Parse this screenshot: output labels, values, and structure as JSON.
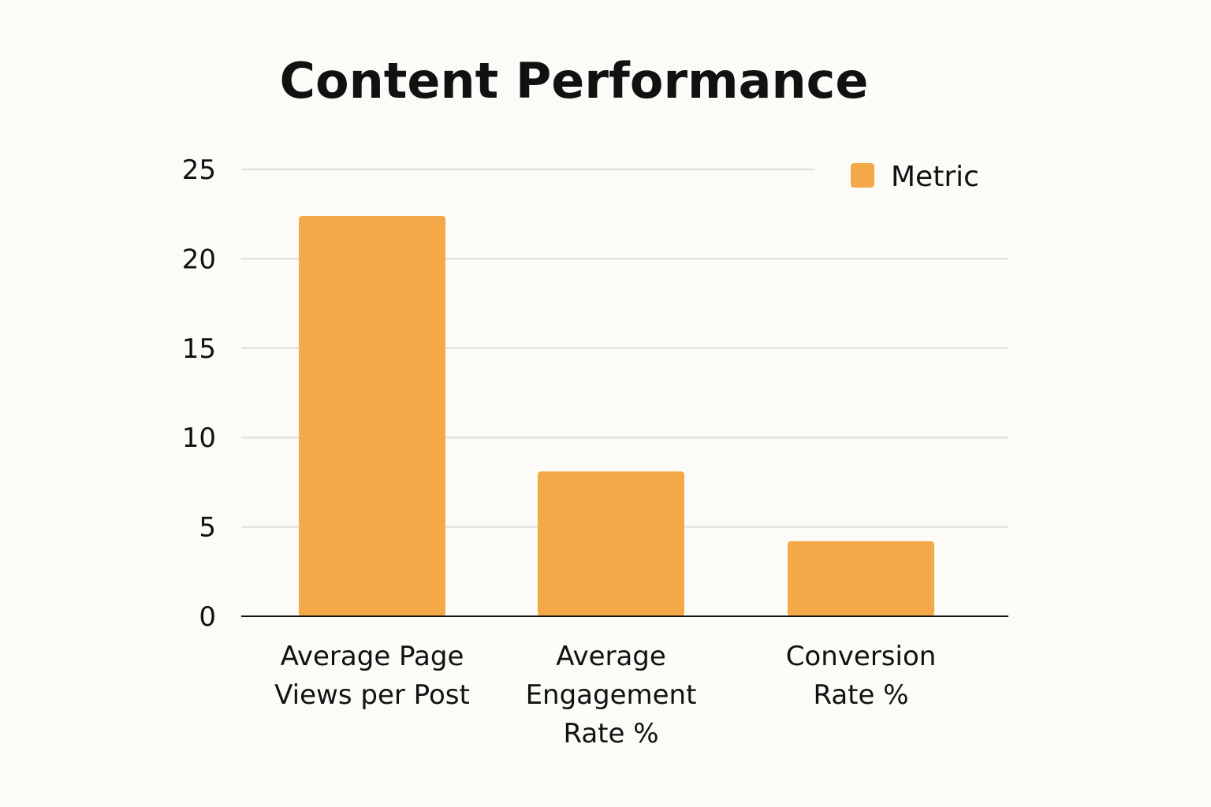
{
  "chart_data": {
    "type": "bar",
    "title": "Content Performance",
    "categories": [
      [
        "Average Page",
        "Views per Post"
      ],
      [
        "Average",
        "Engagement",
        "Rate %"
      ],
      [
        "Conversion",
        "Rate %"
      ]
    ],
    "series": [
      {
        "name": "Metric",
        "values": [
          22.4,
          8.1,
          4.2
        ],
        "color": "#f5a847"
      }
    ],
    "yticks": [
      "0",
      "5",
      "10",
      "15",
      "20",
      "25"
    ],
    "ylim": [
      0,
      25
    ],
    "grid": true,
    "legend_position": "top-right",
    "xlabel": "",
    "ylabel": ""
  }
}
